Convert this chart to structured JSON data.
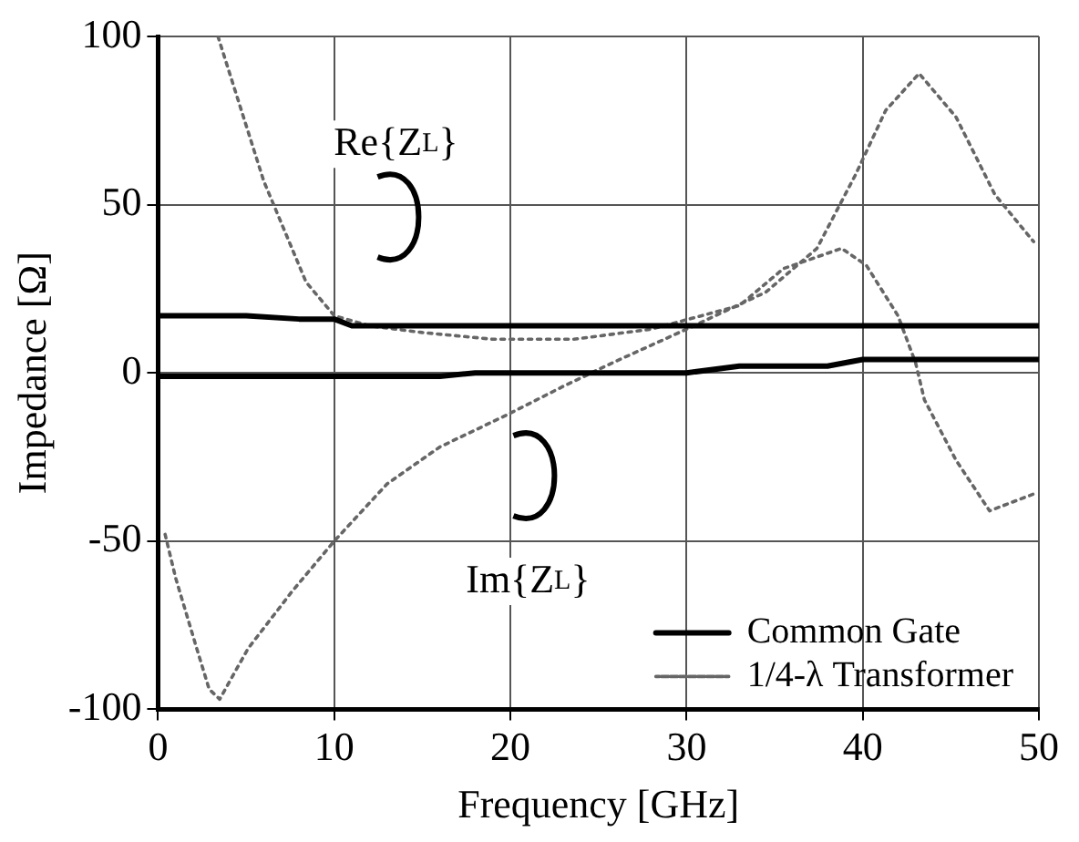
{
  "chart_data": {
    "type": "line",
    "xlabel": "Frequency [GHz]",
    "ylabel": "Impedance [Ω]",
    "xlim": [
      0,
      50
    ],
    "xticks": [
      0,
      10,
      20,
      30,
      40,
      50
    ],
    "ylim": [
      -100,
      100
    ],
    "yticks": [
      -100,
      -50,
      0,
      50,
      100
    ],
    "grid": true,
    "legend": "bottom right",
    "marker": "none",
    "annotations": [
      "Re{Z$_{L}$}",
      "Im{Z$_{L}$}"
    ],
    "series": [
      {
        "name": "Common Gate",
        "color": "#000000",
        "line_style": "solid",
        "x": [
          0,
          5,
          8,
          10,
          11,
          15,
          20,
          30,
          40,
          50
        ],
        "values": [
          17,
          17,
          16,
          16,
          14,
          14,
          14,
          14,
          14,
          14
        ]
      },
      {
        "color": "#000000",
        "line_style": "solid",
        "x": [
          0,
          10,
          16,
          18,
          20,
          30,
          33,
          38,
          40,
          50
        ],
        "values": [
          -1,
          -1,
          -1,
          0,
          0,
          0,
          2,
          2,
          4,
          4
        ]
      },
      {
        "name": "1/4-λ Transformer",
        "color": "#666666",
        "line_style": "dotted",
        "x": [
          3.4,
          6,
          8.4,
          10,
          12,
          15,
          19,
          23.6,
          28,
          33,
          35.5,
          38.8,
          40.2,
          42,
          43,
          43.5,
          45.3,
          47.2,
          49.7
        ],
        "values": [
          100,
          57,
          27,
          17,
          14,
          12,
          10,
          10,
          13,
          20,
          31,
          37,
          32,
          17,
          3,
          -8,
          -26,
          -41,
          -36
        ]
      },
      {
        "color": "#666666",
        "line_style": "dotted",
        "x": [
          0.4,
          1,
          2.2,
          2.9,
          3.5,
          5.1,
          7.6,
          10,
          13,
          16,
          19.6,
          23,
          25.8,
          30,
          34.5,
          37.4,
          39.6,
          41.3,
          43.2,
          45.3,
          47.5,
          49.7
        ],
        "values": [
          -48,
          -61,
          -82,
          -94,
          -97,
          -82,
          -65,
          -50,
          -33,
          -22,
          -13,
          -4,
          3,
          13,
          24,
          37,
          59,
          78,
          89,
          76,
          53,
          39
        ]
      }
    ]
  }
}
